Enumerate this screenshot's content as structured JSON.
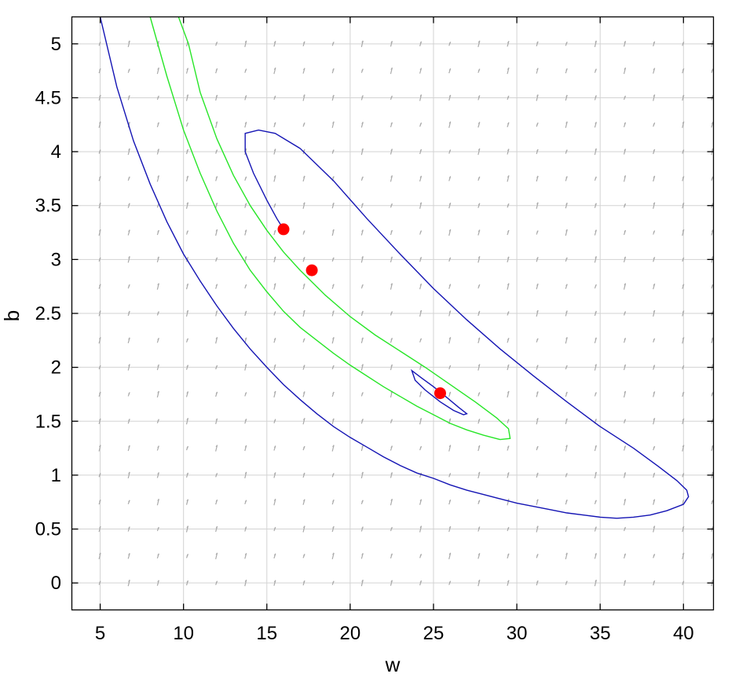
{
  "chart_data": {
    "type": "contour",
    "xlabel": "w",
    "ylabel": "b",
    "xlim": [
      3.3,
      41.8
    ],
    "ylim": [
      -0.25,
      5.25
    ],
    "xticks": [
      5,
      10,
      15,
      20,
      25,
      30,
      35,
      40
    ],
    "yticks": [
      0,
      0.5,
      1,
      1.5,
      2,
      2.5,
      3,
      3.5,
      4,
      4.5,
      5
    ],
    "xtick_labels": [
      "5",
      "10",
      "15",
      "20",
      "25",
      "30",
      "35",
      "40"
    ],
    "ytick_labels": [
      "0",
      "0.5",
      "1",
      "1.5",
      "2",
      "2.5",
      "3",
      "3.5",
      "4",
      "4.5",
      "5"
    ],
    "grid": true,
    "colors": {
      "blue": "#1414b4",
      "green": "#28e628",
      "red": "#ff0000",
      "arrow": "#aaaaaa",
      "grid": "#d3d3d3"
    },
    "contours": [
      {
        "color": "#1414b4",
        "points": [
          [
            5,
            5.25
          ],
          [
            6,
            4.6
          ],
          [
            7,
            4.1
          ],
          [
            8,
            3.7
          ],
          [
            9,
            3.35
          ],
          [
            10,
            3.05
          ],
          [
            11,
            2.8
          ],
          [
            12,
            2.57
          ],
          [
            13,
            2.36
          ],
          [
            14,
            2.17
          ],
          [
            15,
            2.0
          ],
          [
            16,
            1.84
          ],
          [
            17,
            1.7
          ],
          [
            18,
            1.57
          ],
          [
            19,
            1.45
          ],
          [
            20,
            1.35
          ],
          [
            21,
            1.26
          ],
          [
            22,
            1.17
          ],
          [
            23,
            1.09
          ],
          [
            24,
            1.02
          ],
          [
            25,
            0.97
          ],
          [
            26,
            0.91
          ],
          [
            27,
            0.86
          ],
          [
            28,
            0.82
          ],
          [
            29,
            0.78
          ],
          [
            30,
            0.74
          ],
          [
            31,
            0.71
          ],
          [
            32,
            0.68
          ],
          [
            33,
            0.65
          ],
          [
            34,
            0.63
          ],
          [
            35,
            0.61
          ],
          [
            36,
            0.6
          ],
          [
            37,
            0.61
          ],
          [
            38,
            0.63
          ],
          [
            39,
            0.67
          ],
          [
            40,
            0.73
          ],
          [
            40.3,
            0.8
          ],
          [
            40.2,
            0.86
          ],
          [
            39.6,
            0.95
          ],
          [
            38.5,
            1.08
          ],
          [
            37,
            1.25
          ],
          [
            35,
            1.45
          ],
          [
            33,
            1.68
          ],
          [
            31,
            1.92
          ],
          [
            29,
            2.17
          ],
          [
            27,
            2.44
          ],
          [
            25,
            2.73
          ],
          [
            23,
            3.05
          ],
          [
            21,
            3.38
          ],
          [
            19,
            3.73
          ],
          [
            17,
            4.03
          ],
          [
            15.5,
            4.17
          ],
          [
            14.5,
            4.2
          ],
          [
            13.7,
            4.17
          ],
          [
            13.7,
            4.0
          ],
          [
            14.2,
            3.8
          ],
          [
            15,
            3.55
          ],
          [
            15.6,
            3.38
          ],
          [
            16,
            3.28
          ]
        ]
      },
      {
        "color": "#1414b4",
        "closed": true,
        "points": [
          [
            23.7,
            1.97
          ],
          [
            24.3,
            1.9
          ],
          [
            25,
            1.82
          ],
          [
            25.8,
            1.72
          ],
          [
            26.5,
            1.63
          ],
          [
            27,
            1.57
          ],
          [
            26.8,
            1.56
          ],
          [
            26.2,
            1.6
          ],
          [
            25.4,
            1.68
          ],
          [
            24.5,
            1.79
          ],
          [
            23.9,
            1.88
          ]
        ]
      },
      {
        "color": "#28e628",
        "points": [
          [
            8,
            5.25
          ],
          [
            9,
            4.7
          ],
          [
            10,
            4.2
          ],
          [
            11,
            3.8
          ],
          [
            12,
            3.45
          ],
          [
            13,
            3.15
          ],
          [
            14,
            2.9
          ],
          [
            15,
            2.7
          ],
          [
            16,
            2.52
          ],
          [
            17,
            2.37
          ],
          [
            18,
            2.25
          ],
          [
            19,
            2.13
          ],
          [
            20,
            2.02
          ],
          [
            21,
            1.92
          ],
          [
            22,
            1.82
          ],
          [
            23,
            1.73
          ],
          [
            24,
            1.64
          ],
          [
            25,
            1.56
          ],
          [
            26,
            1.48
          ],
          [
            27,
            1.42
          ],
          [
            28,
            1.37
          ],
          [
            29,
            1.33
          ],
          [
            29.6,
            1.34
          ],
          [
            29.5,
            1.43
          ],
          [
            28.8,
            1.53
          ],
          [
            27.5,
            1.68
          ],
          [
            26,
            1.84
          ],
          [
            24.5,
            2.0
          ],
          [
            23,
            2.15
          ],
          [
            21.5,
            2.3
          ],
          [
            20,
            2.47
          ],
          [
            18.5,
            2.67
          ],
          [
            17,
            2.9
          ],
          [
            16,
            3.07
          ],
          [
            15,
            3.27
          ],
          [
            14,
            3.5
          ],
          [
            13,
            3.78
          ],
          [
            12,
            4.12
          ],
          [
            11,
            4.55
          ],
          [
            10.3,
            5.0
          ],
          [
            9.7,
            5.25
          ]
        ]
      }
    ],
    "points": [
      {
        "x": 16.0,
        "y": 3.28,
        "color": "#ff0000"
      },
      {
        "x": 17.7,
        "y": 2.9,
        "color": "#ff0000"
      },
      {
        "x": 25.4,
        "y": 1.76,
        "color": "#ff0000"
      }
    ],
    "vector_field": {
      "x_start": 5,
      "x_step": 1.75,
      "nx": 22,
      "y_start": 0,
      "y_step": 0.25,
      "ny": 21
    }
  }
}
